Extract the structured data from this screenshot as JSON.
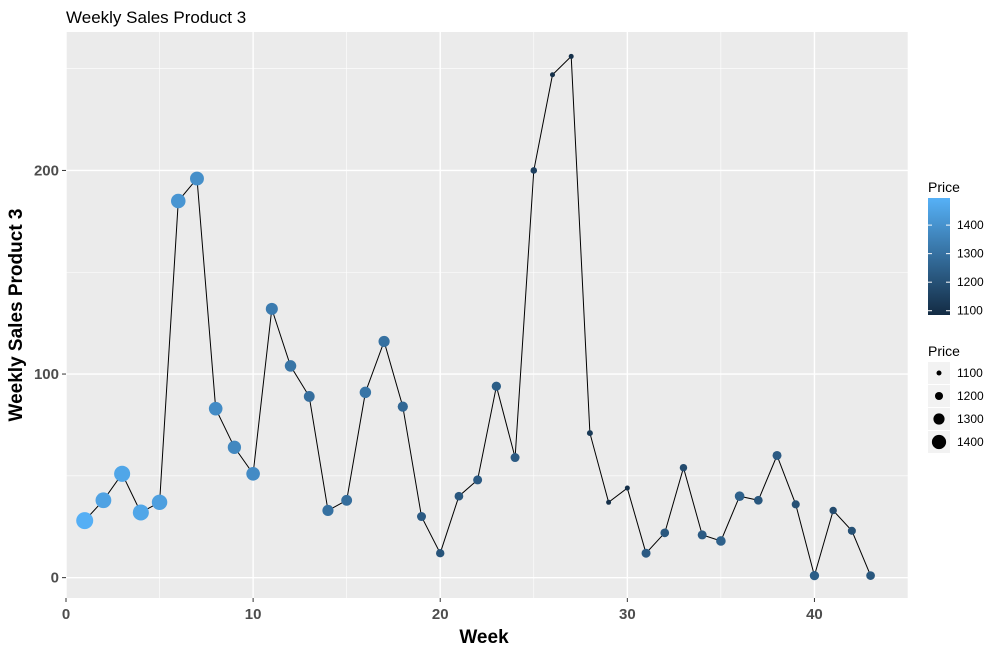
{
  "chart_data": {
    "type": "line",
    "title": "Weekly Sales Product 3",
    "xlabel": "Week",
    "ylabel": "Weekly Sales Product 3",
    "xlim": [
      0,
      45
    ],
    "ylim": [
      -10,
      268
    ],
    "xticks": [
      0,
      10,
      20,
      30,
      40
    ],
    "yticks": [
      0,
      100,
      200
    ],
    "grid": true,
    "legend_placement": "right",
    "colors": {
      "panel": "#ebebeb",
      "grid": "#ffffff",
      "line": "#000000",
      "price_low": "#132b43",
      "price_high": "#56b1f7",
      "tick_text": "#4d4d4d"
    },
    "series": [
      {
        "x": [
          1,
          2,
          3,
          4,
          5,
          6,
          7,
          8,
          9,
          10,
          11,
          12,
          13,
          14,
          15,
          16,
          17,
          18,
          19,
          20,
          21,
          22,
          23,
          24,
          25,
          26,
          27,
          28,
          29,
          30,
          31,
          32,
          33,
          34,
          35,
          36,
          37,
          38,
          39,
          40,
          41,
          42,
          43
        ],
        "values": [
          28,
          38,
          51,
          32,
          37,
          185,
          196,
          83,
          64,
          51,
          132,
          104,
          89,
          33,
          38,
          91,
          116,
          84,
          30,
          12,
          40,
          48,
          94,
          59,
          200,
          247,
          256,
          71,
          37,
          44,
          12,
          22,
          54,
          21,
          18,
          40,
          38,
          60,
          36,
          1,
          33,
          23,
          1
        ],
        "price": [
          1490,
          1450,
          1460,
          1460,
          1440,
          1410,
          1390,
          1380,
          1370,
          1380,
          1330,
          1310,
          1290,
          1300,
          1290,
          1310,
          1300,
          1270,
          1230,
          1210,
          1220,
          1230,
          1240,
          1230,
          1150,
          1100,
          1100,
          1130,
          1100,
          1100,
          1230,
          1220,
          1180,
          1230,
          1250,
          1250,
          1220,
          1230,
          1200,
          1240,
          1180,
          1200,
          1220
        ]
      }
    ],
    "legends": {
      "color": {
        "title": "Price",
        "labels": [
          "1400",
          "1300",
          "1200",
          "1100"
        ],
        "values": [
          1400,
          1300,
          1200,
          1100
        ],
        "range": [
          1085,
          1495
        ]
      },
      "size": {
        "title": "Price",
        "labels": [
          "1100",
          "1200",
          "1300",
          "1400"
        ],
        "values": [
          1100,
          1200,
          1300,
          1400
        ]
      }
    }
  }
}
